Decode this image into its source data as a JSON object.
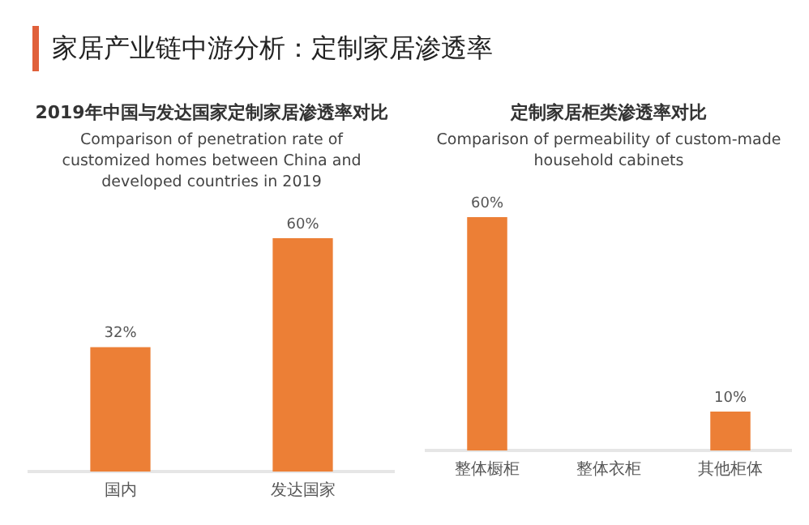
{
  "chart_data": [
    {
      "type": "bar",
      "title": "2019年中国与发达国家定制家居渗透率对比",
      "subtitle": "Comparison of penetration rate of customized homes between China and developed countries in 2019",
      "annotations": [
        "家居产业链中游分析：定制家居渗透率"
      ],
      "categories": [
        "国内",
        "发达国家"
      ],
      "values": [
        32,
        60
      ],
      "value_labels": [
        "32%",
        "60%"
      ],
      "color": "#ec7f36",
      "grid": false
    },
    {
      "type": "bar",
      "title": "定制家居柜类渗透率对比",
      "subtitle": "Comparison of permeability of custom-made household cabinets",
      "categories": [
        "整体橱柜",
        "整体衣柜",
        "其他柜体"
      ],
      "values": [
        60,
        null,
        10
      ],
      "value_labels": [
        "60%",
        null,
        "10%"
      ],
      "color": "#ec7f36",
      "grid": false
    }
  ]
}
